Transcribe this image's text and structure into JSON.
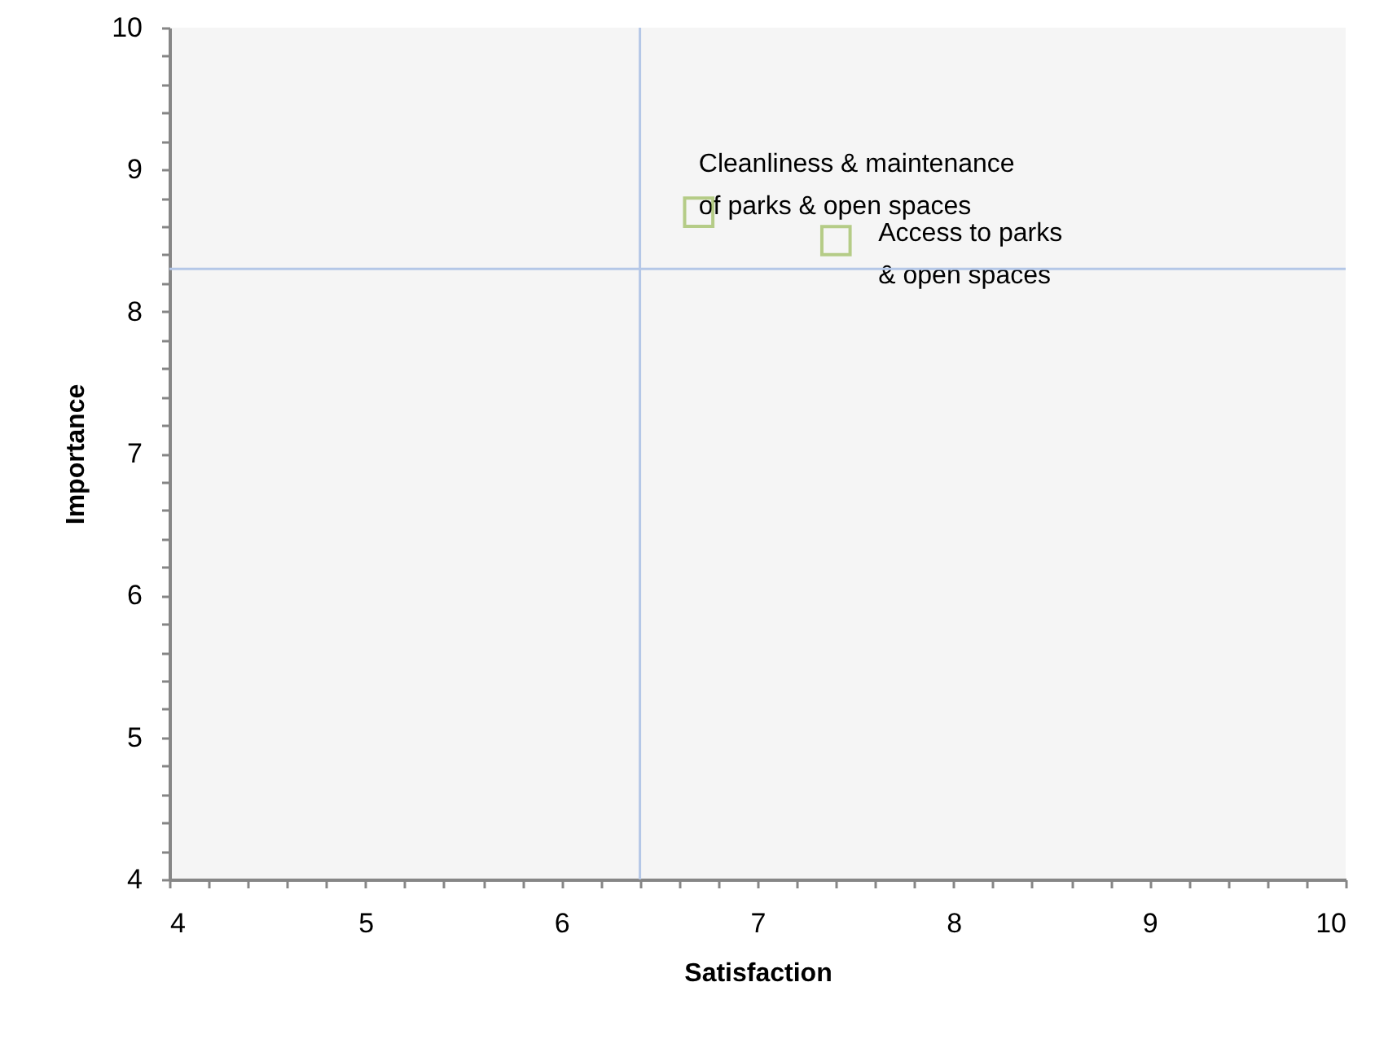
{
  "chart_data": {
    "type": "scatter",
    "xlabel": "Satisfaction",
    "ylabel": "Importance",
    "x": [
      6.7,
      7.4
    ],
    "series": [
      {
        "color": "#9bbb59",
        "values": [
          8.7,
          8.5
        ]
      }
    ],
    "marker": "square",
    "grid": false,
    "xlim": [
      4,
      10
    ],
    "ylim": [
      4,
      10
    ],
    "xticks": [
      4,
      {
        "value": 4.2,
        "label": null
      },
      {
        "value": 4.4,
        "label": null
      },
      {
        "value": 4.6,
        "label": null
      },
      {
        "value": 4.8,
        "label": null
      },
      5,
      {
        "value": 5.2,
        "label": null
      },
      {
        "value": 5.4,
        "label": null
      },
      {
        "value": 5.6,
        "label": null
      },
      {
        "value": 5.8,
        "label": null
      },
      6,
      {
        "value": 6.2,
        "label": null
      },
      {
        "value": 6.4,
        "label": null
      },
      {
        "value": 6.6,
        "label": null
      },
      {
        "value": 6.8,
        "label": null
      },
      7,
      {
        "value": 7.2,
        "label": null
      },
      {
        "value": 7.4,
        "label": null
      },
      {
        "value": 7.6,
        "label": null
      },
      {
        "value": 7.8,
        "label": null
      },
      8,
      {
        "value": 8.2,
        "label": null
      },
      {
        "value": 8.4,
        "label": null
      },
      {
        "value": 8.6,
        "label": null
      },
      {
        "value": 8.8,
        "label": null
      },
      9,
      {
        "value": 9.2,
        "label": null
      },
      {
        "value": 9.4,
        "label": null
      },
      {
        "value": 9.6,
        "label": null
      },
      {
        "value": 9.8,
        "label": null
      },
      10
    ],
    "yticks": [
      4,
      {
        "value": 4.2,
        "label": null
      },
      {
        "value": 4.4,
        "label": null
      },
      {
        "value": 4.6,
        "label": null
      },
      {
        "value": 4.8,
        "label": null
      },
      5,
      {
        "value": 5.2,
        "label": null
      },
      {
        "value": 5.4,
        "label": null
      },
      {
        "value": 5.6,
        "label": null
      },
      {
        "value": 5.8,
        "label": null
      },
      6,
      {
        "value": 6.2,
        "label": null
      },
      {
        "value": 6.4,
        "label": null
      },
      {
        "value": 6.6,
        "label": null
      },
      {
        "value": 6.8,
        "label": null
      },
      7,
      {
        "value": 7.2,
        "label": null
      },
      {
        "value": 7.4,
        "label": null
      },
      {
        "value": 7.6,
        "label": null
      },
      {
        "value": 7.8,
        "label": null
      },
      8,
      {
        "value": 8.2,
        "label": null
      },
      {
        "value": 8.4,
        "label": null
      },
      {
        "value": 8.6,
        "label": null
      },
      {
        "value": 8.8,
        "label": null
      },
      9,
      {
        "value": 9.2,
        "label": null
      },
      {
        "value": 9.4,
        "label": null
      },
      {
        "value": 9.6,
        "label": null
      },
      {
        "value": 9.8,
        "label": null
      },
      10
    ],
    "ref_lines": [
      {
        "axis": "x",
        "value": 6.4,
        "color": "#b4c7e7"
      },
      {
        "axis": "y",
        "value": 8.3,
        "color": "#b4c7e7"
      }
    ],
    "annotations": [
      {
        "text": "Cleanliness & maintenance of parks & open spaces",
        "x": 6.7,
        "y": 8.7
      },
      {
        "text": "Access to parks & open spaces",
        "x": 7.4,
        "y": 8.5
      }
    ]
  }
}
